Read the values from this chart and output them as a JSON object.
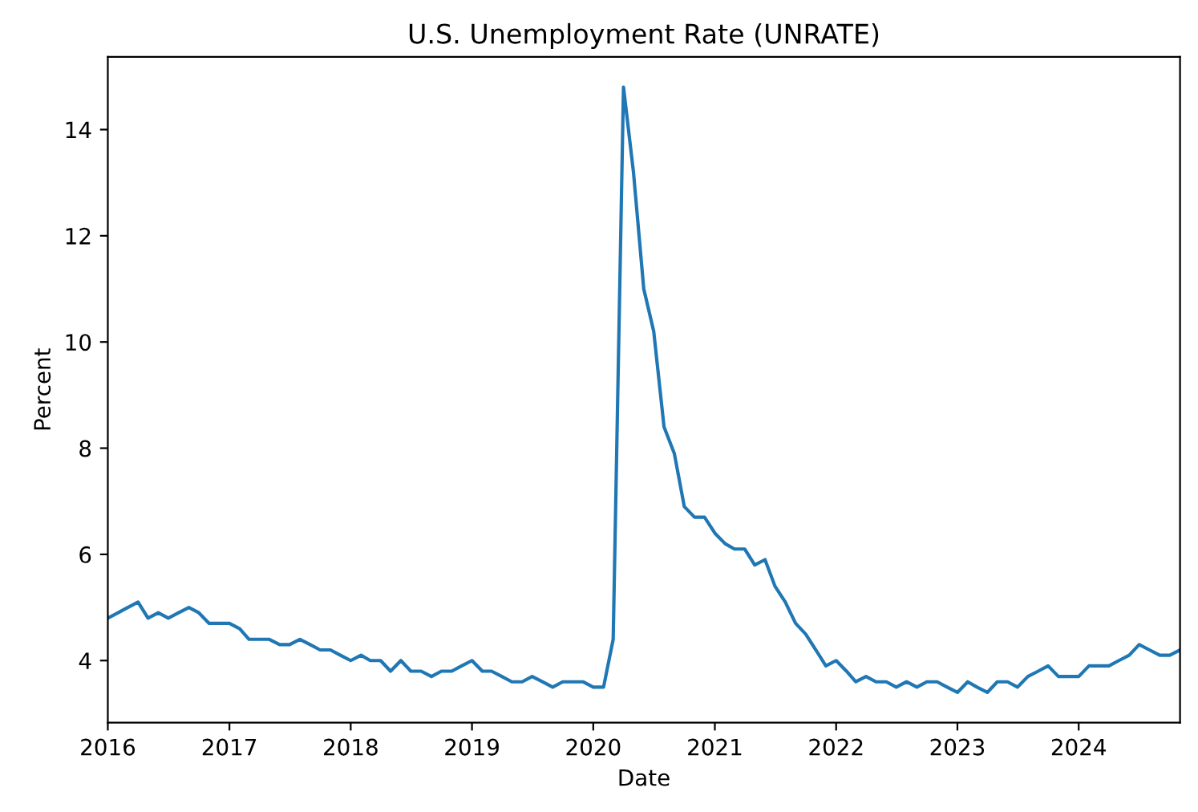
{
  "chart_data": {
    "type": "line",
    "title": "U.S. Unemployment Rate (UNRATE)",
    "xlabel": "Date",
    "ylabel": "Percent",
    "x": [
      "2016-01",
      "2016-02",
      "2016-03",
      "2016-04",
      "2016-05",
      "2016-06",
      "2016-07",
      "2016-08",
      "2016-09",
      "2016-10",
      "2016-11",
      "2016-12",
      "2017-01",
      "2017-02",
      "2017-03",
      "2017-04",
      "2017-05",
      "2017-06",
      "2017-07",
      "2017-08",
      "2017-09",
      "2017-10",
      "2017-11",
      "2017-12",
      "2018-01",
      "2018-02",
      "2018-03",
      "2018-04",
      "2018-05",
      "2018-06",
      "2018-07",
      "2018-08",
      "2018-09",
      "2018-10",
      "2018-11",
      "2018-12",
      "2019-01",
      "2019-02",
      "2019-03",
      "2019-04",
      "2019-05",
      "2019-06",
      "2019-07",
      "2019-08",
      "2019-09",
      "2019-10",
      "2019-11",
      "2019-12",
      "2020-01",
      "2020-02",
      "2020-03",
      "2020-04",
      "2020-05",
      "2020-06",
      "2020-07",
      "2020-08",
      "2020-09",
      "2020-10",
      "2020-11",
      "2020-12",
      "2021-01",
      "2021-02",
      "2021-03",
      "2021-04",
      "2021-05",
      "2021-06",
      "2021-07",
      "2021-08",
      "2021-09",
      "2021-10",
      "2021-11",
      "2021-12",
      "2022-01",
      "2022-02",
      "2022-03",
      "2022-04",
      "2022-05",
      "2022-06",
      "2022-07",
      "2022-08",
      "2022-09",
      "2022-10",
      "2022-11",
      "2022-12",
      "2023-01",
      "2023-02",
      "2023-03",
      "2023-04",
      "2023-05",
      "2023-06",
      "2023-07",
      "2023-08",
      "2023-09",
      "2023-10",
      "2023-11",
      "2023-12",
      "2024-01",
      "2024-02",
      "2024-03",
      "2024-04",
      "2024-05",
      "2024-06",
      "2024-07",
      "2024-08",
      "2024-09",
      "2024-10",
      "2024-11"
    ],
    "series": [
      {
        "color": "#1f77b4",
        "values": [
          4.8,
          4.9,
          5.0,
          5.1,
          4.8,
          4.9,
          4.8,
          4.9,
          5.0,
          4.9,
          4.7,
          4.7,
          4.7,
          4.6,
          4.4,
          4.4,
          4.4,
          4.3,
          4.3,
          4.4,
          4.3,
          4.2,
          4.2,
          4.1,
          4.0,
          4.1,
          4.0,
          4.0,
          3.8,
          4.0,
          3.8,
          3.8,
          3.7,
          3.8,
          3.8,
          3.9,
          4.0,
          3.8,
          3.8,
          3.7,
          3.6,
          3.6,
          3.7,
          3.6,
          3.5,
          3.6,
          3.6,
          3.6,
          3.5,
          3.5,
          4.4,
          14.8,
          13.2,
          11.0,
          10.2,
          8.4,
          7.9,
          6.9,
          6.7,
          6.7,
          6.4,
          6.2,
          6.1,
          6.1,
          5.8,
          5.9,
          5.4,
          5.1,
          4.7,
          4.5,
          4.2,
          3.9,
          4.0,
          3.8,
          3.6,
          3.7,
          3.6,
          3.6,
          3.5,
          3.6,
          3.5,
          3.6,
          3.6,
          3.5,
          3.4,
          3.6,
          3.5,
          3.4,
          3.6,
          3.6,
          3.5,
          3.7,
          3.8,
          3.9,
          3.7,
          3.7,
          3.7,
          3.9,
          3.9,
          3.9,
          4.0,
          4.1,
          4.3,
          4.2,
          4.1,
          4.1,
          4.2
        ]
      }
    ],
    "xlim": [
      "2016-01",
      "2024-11"
    ],
    "xticks": [
      {
        "value": "2016-01",
        "label": "2016"
      },
      {
        "value": "2017-01",
        "label": "2017"
      },
      {
        "value": "2018-01",
        "label": "2018"
      },
      {
        "value": "2019-01",
        "label": "2019"
      },
      {
        "value": "2020-01",
        "label": "2020"
      },
      {
        "value": "2021-01",
        "label": "2021"
      },
      {
        "value": "2022-01",
        "label": "2022"
      },
      {
        "value": "2023-01",
        "label": "2023"
      },
      {
        "value": "2024-01",
        "label": "2024"
      }
    ],
    "ylim": [
      2.83,
      15.37
    ],
    "yticks": [
      4,
      6,
      8,
      10,
      12,
      14
    ],
    "grid": false,
    "marker": "none",
    "line_style": "solid"
  }
}
